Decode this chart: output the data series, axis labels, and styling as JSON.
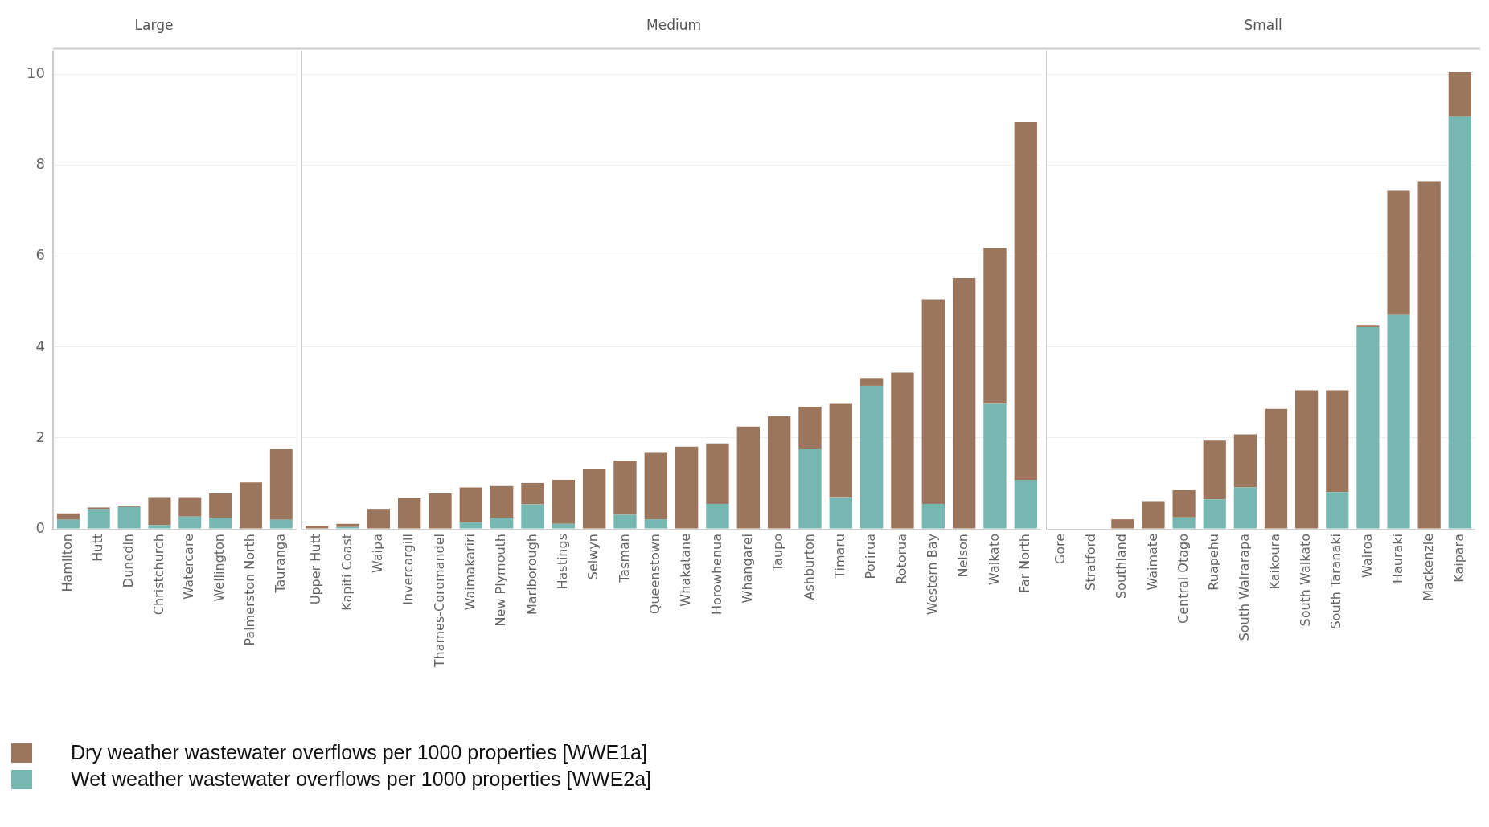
{
  "chart_data": [
    {
      "type": "bar",
      "title": "Large",
      "stacked": true,
      "grid": "y",
      "legend": "bottom",
      "categories": [
        "Hamilton",
        "Hutt",
        "Dunedin",
        "Christchurch",
        "Watercare",
        "Wellington",
        "Palmerston North",
        "Tauranga"
      ],
      "ylim": [
        0,
        10.5
      ],
      "yticks": [
        0,
        2,
        4,
        6,
        8,
        10
      ],
      "series": [
        {
          "name": "Wet weather wastewater overflows per 1000 properties [WWE2a]",
          "color": "#76b7b2",
          "values": [
            0.2,
            0.44,
            0.48,
            0.08,
            0.27,
            0.24,
            0,
            0.2
          ]
        },
        {
          "name": "Dry weather wastewater overflows per 1000 properties [WWE1a]",
          "color": "#9c765c",
          "values": [
            0.14,
            0.03,
            0.03,
            0.6,
            0.41,
            0.54,
            1.02,
            1.55
          ]
        }
      ]
    },
    {
      "type": "bar",
      "title": "Medium",
      "stacked": true,
      "grid": "y",
      "tick_labels": "x",
      "categories": [
        "Upper Hutt",
        "Kapiti Coast",
        "Waipa",
        "Invercargill",
        "Thames-Coromandel",
        "Waimakariri",
        "New Plymouth",
        "Marlborough",
        "Hastings",
        "Selwyn",
        "Tasman",
        "Queenstown",
        "Whakatane",
        "Horowhenua",
        "Whangarei",
        "Taupo",
        "Ashburton",
        "Timaru",
        "Porirua",
        "Rotorua",
        "Western Bay",
        "Nelson",
        "Waikato",
        "Far North"
      ],
      "ylim": [
        0,
        10.5
      ],
      "yticks": [
        0,
        2,
        4,
        6,
        8,
        10
      ],
      "series": [
        {
          "color": "#76b7b2",
          "values": [
            0,
            0.04,
            0,
            0,
            0,
            0.14,
            0.24,
            0.54,
            0.11,
            0,
            0.31,
            0.21,
            0,
            0.55,
            0,
            0,
            1.75,
            0.68,
            3.15,
            0,
            0.55,
            0,
            2.75,
            1.08
          ]
        },
        {
          "color": "#9c765c",
          "values": [
            0.07,
            0.07,
            0.44,
            0.67,
            0.78,
            0.77,
            0.7,
            0.47,
            0.97,
            1.31,
            1.19,
            1.46,
            1.81,
            1.33,
            2.25,
            2.48,
            0.94,
            2.07,
            0.17,
            3.44,
            4.5,
            5.52,
            3.43,
            7.87
          ]
        }
      ]
    },
    {
      "type": "bar",
      "title": "Small",
      "stacked": true,
      "grid": "y",
      "tick_labels": "x",
      "categories": [
        "Gore",
        "Stratford",
        "Southland",
        "Waimate",
        "Central Otago",
        "Ruapehu",
        "South Wairarapa",
        "Kaikoura",
        "South Waikato",
        "South Taranaki",
        "Wairoa",
        "Hauraki",
        "Mackenzie",
        "Kaipara"
      ],
      "ylim": [
        0,
        10.5
      ],
      "yticks": [
        0,
        2,
        4,
        6,
        8,
        10
      ],
      "series": [
        {
          "color": "#76b7b2",
          "values": [
            0,
            0,
            0,
            0,
            0.25,
            0.65,
            0.91,
            0,
            0,
            0.81,
            4.44,
            4.71,
            0,
            9.08
          ]
        },
        {
          "color": "#9c765c",
          "values": [
            0,
            0,
            0.21,
            0.61,
            0.6,
            1.29,
            1.17,
            2.64,
            3.05,
            2.24,
            0.03,
            2.73,
            7.65,
            0.97
          ]
        }
      ]
    }
  ]
}
